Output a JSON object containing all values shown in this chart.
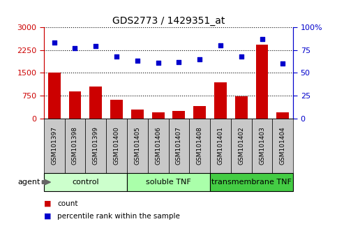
{
  "title": "GDS2773 / 1429351_at",
  "categories": [
    "GSM101397",
    "GSM101398",
    "GSM101399",
    "GSM101400",
    "GSM101405",
    "GSM101406",
    "GSM101407",
    "GSM101408",
    "GSM101401",
    "GSM101402",
    "GSM101403",
    "GSM101404"
  ],
  "bar_values": [
    1500,
    900,
    1050,
    620,
    290,
    210,
    250,
    420,
    1200,
    720,
    2430,
    195
  ],
  "percentile_values": [
    83,
    77,
    79,
    68,
    63,
    61,
    62,
    65,
    80,
    68,
    87,
    60
  ],
  "bar_color": "#cc0000",
  "dot_color": "#0000cc",
  "ylim_left": [
    0,
    3000
  ],
  "ylim_right": [
    0,
    100
  ],
  "yticks_left": [
    0,
    750,
    1500,
    2250,
    3000
  ],
  "yticks_right": [
    0,
    25,
    50,
    75,
    100
  ],
  "groups": [
    {
      "label": "control",
      "start": 0,
      "end": 4,
      "color": "#ccffcc"
    },
    {
      "label": "soluble TNF",
      "start": 4,
      "end": 8,
      "color": "#aaffaa"
    },
    {
      "label": "transmembrane TNF",
      "start": 8,
      "end": 12,
      "color": "#44cc44"
    }
  ],
  "agent_label": "agent",
  "legend_count_label": "count",
  "legend_percentile_label": "percentile rank within the sample",
  "bg_color": "#ffffff",
  "plot_bg_color": "#ffffff",
  "tick_bg_color": "#c8c8c8",
  "tick_border_color": "#000000"
}
